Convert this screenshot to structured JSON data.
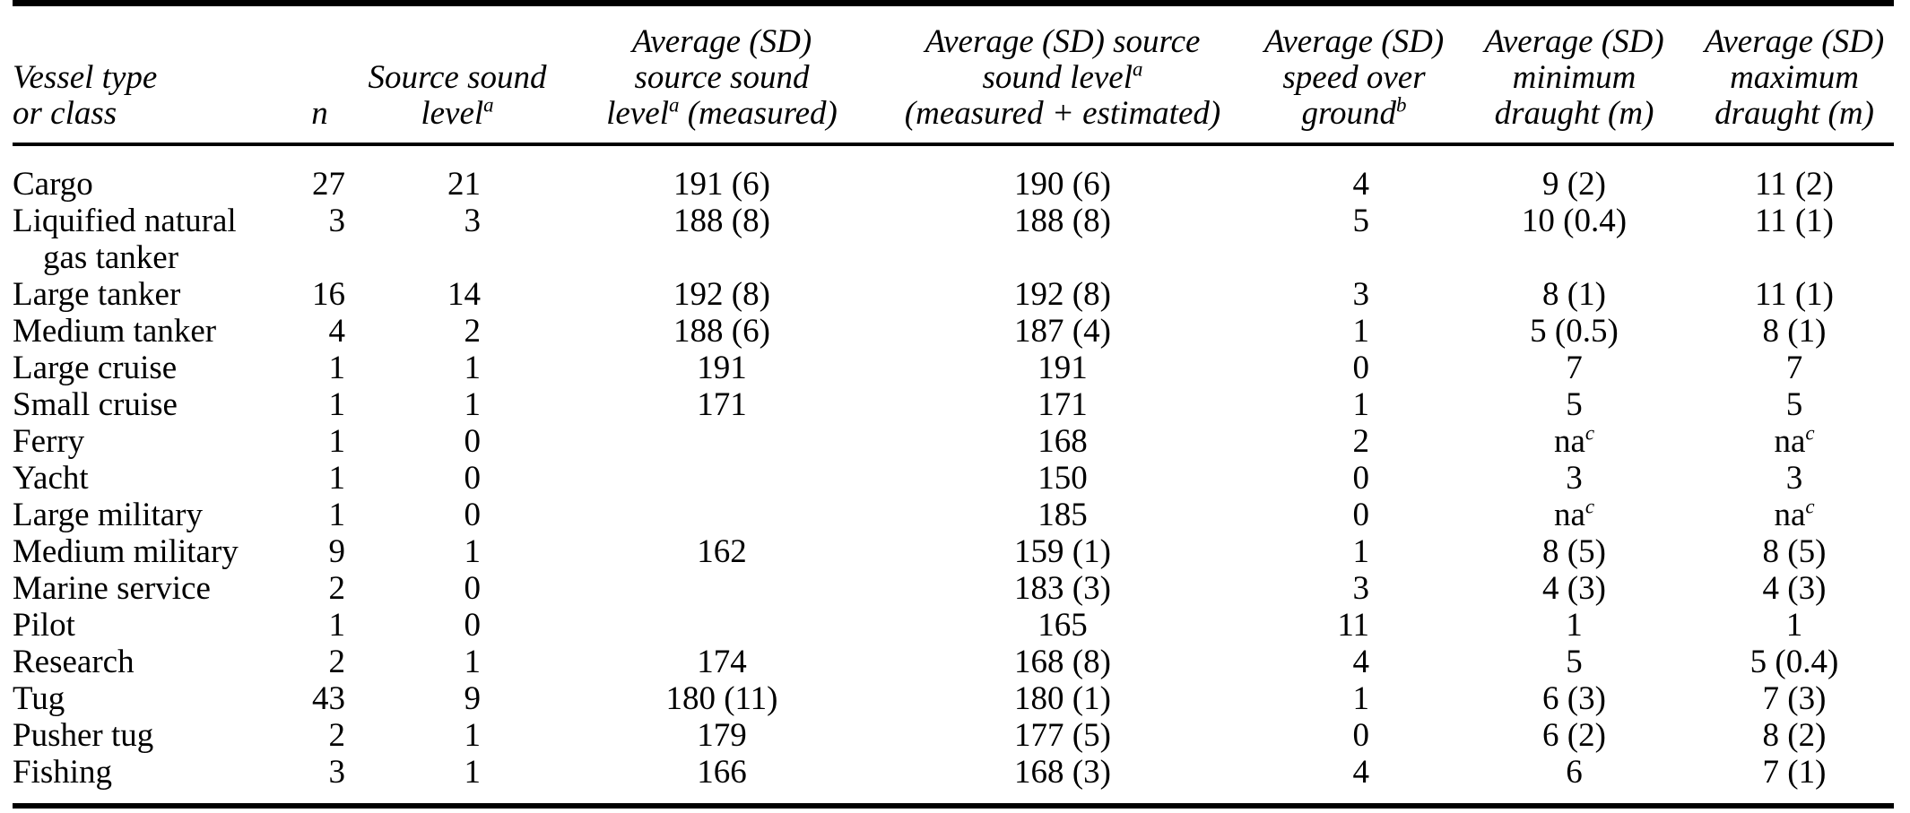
{
  "colors": {
    "text": "#000000",
    "background": "#ffffff",
    "rule": "#000000"
  },
  "table": {
    "columns": [
      {
        "id": "vessel",
        "align": "left",
        "header_lines": [
          "Vessel type",
          "or class"
        ]
      },
      {
        "id": "n",
        "align": "right",
        "header_lines": [
          "n"
        ]
      },
      {
        "id": "source",
        "align": "right",
        "header_lines": [
          "Source sound",
          "level^{a}"
        ]
      },
      {
        "id": "measured",
        "align": "center",
        "header_lines": [
          "Average (SD)",
          "source sound",
          "level^{a} (measured)"
        ]
      },
      {
        "id": "measured_estimated",
        "align": "center",
        "header_lines": [
          "Average (SD) source",
          "sound level^{a}",
          "(measured + estimated)"
        ]
      },
      {
        "id": "speed",
        "align": "right",
        "header_lines": [
          "Average (SD)",
          "speed over",
          "ground^{b}"
        ]
      },
      {
        "id": "min_draught",
        "align": "center",
        "header_lines": [
          "Average (SD)",
          "minimum",
          "draught (m)"
        ]
      },
      {
        "id": "max_draught",
        "align": "center",
        "header_lines": [
          "Average (SD)",
          "maximum",
          "draught (m)"
        ]
      }
    ],
    "rows": [
      {
        "vessel": "Cargo",
        "n": "27",
        "source": "21",
        "measured": "191 (6)",
        "measured_estimated": "190 (6)",
        "speed": "4",
        "min_draught": "9 (2)",
        "max_draught": "11 (2)"
      },
      {
        "vessel": "Liquified natural\ngas tanker",
        "n": "3",
        "source": "3",
        "measured": "188 (8)",
        "measured_estimated": "188 (8)",
        "speed": "5",
        "min_draught": "10 (0.4)",
        "max_draught": "11 (1)"
      },
      {
        "vessel": "Large tanker",
        "n": "16",
        "source": "14",
        "measured": "192 (8)",
        "measured_estimated": "192 (8)",
        "speed": "3",
        "min_draught": "8 (1)",
        "max_draught": "11 (1)"
      },
      {
        "vessel": "Medium tanker",
        "n": "4",
        "source": "2",
        "measured": "188 (6)",
        "measured_estimated": "187 (4)",
        "speed": "1",
        "min_draught": "5 (0.5)",
        "max_draught": "8 (1)"
      },
      {
        "vessel": "Large cruise",
        "n": "1",
        "source": "1",
        "measured": "191",
        "measured_estimated": "191",
        "speed": "0",
        "min_draught": "7",
        "max_draught": "7"
      },
      {
        "vessel": "Small cruise",
        "n": "1",
        "source": "1",
        "measured": "171",
        "measured_estimated": "171",
        "speed": "1",
        "min_draught": "5",
        "max_draught": "5"
      },
      {
        "vessel": "Ferry",
        "n": "1",
        "source": "0",
        "measured": "",
        "measured_estimated": "168",
        "speed": "2",
        "min_draught": "na^{c}",
        "max_draught": "na^{c}"
      },
      {
        "vessel": "Yacht",
        "n": "1",
        "source": "0",
        "measured": "",
        "measured_estimated": "150",
        "speed": "0",
        "min_draught": "3",
        "max_draught": "3"
      },
      {
        "vessel": "Large military",
        "n": "1",
        "source": "0",
        "measured": "",
        "measured_estimated": "185",
        "speed": "0",
        "min_draught": "na^{c}",
        "max_draught": "na^{c}"
      },
      {
        "vessel": "Medium military",
        "n": "9",
        "source": "1",
        "measured": "162",
        "measured_estimated": "159 (1)",
        "speed": "1",
        "min_draught": "8 (5)",
        "max_draught": "8 (5)"
      },
      {
        "vessel": "Marine service",
        "n": "2",
        "source": "0",
        "measured": "",
        "measured_estimated": "183 (3)",
        "speed": "3",
        "min_draught": "4 (3)",
        "max_draught": "4 (3)"
      },
      {
        "vessel": "Pilot",
        "n": "1",
        "source": "0",
        "measured": "",
        "measured_estimated": "165",
        "speed": "11",
        "min_draught": "1",
        "max_draught": "1"
      },
      {
        "vessel": "Research",
        "n": "2",
        "source": "1",
        "measured": "174",
        "measured_estimated": "168 (8)",
        "speed": "4",
        "min_draught": "5",
        "max_draught": "5 (0.4)"
      },
      {
        "vessel": "Tug",
        "n": "43",
        "source": "9",
        "measured": "180 (11)",
        "measured_estimated": "180 (1)",
        "speed": "1",
        "min_draught": "6 (3)",
        "max_draught": "7 (3)"
      },
      {
        "vessel": "Pusher tug",
        "n": "2",
        "source": "1",
        "measured": "179",
        "measured_estimated": "177 (5)",
        "speed": "0",
        "min_draught": "6 (2)",
        "max_draught": "8 (2)"
      },
      {
        "vessel": "Fishing",
        "n": "3",
        "source": "1",
        "measured": "166",
        "measured_estimated": "168 (3)",
        "speed": "4",
        "min_draught": "6",
        "max_draught": "7 (1)"
      }
    ]
  }
}
